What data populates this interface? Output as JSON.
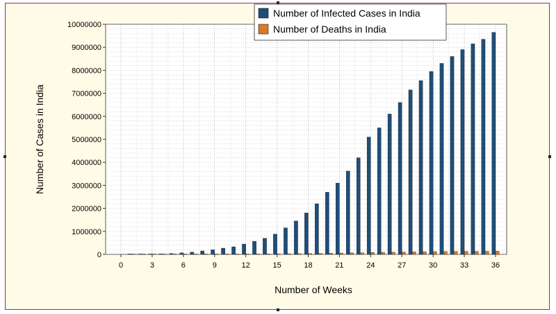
{
  "chart_data": {
    "type": "bar",
    "xlabel": "Number of Weeks",
    "ylabel": "Number of Cases in India",
    "xlim": [
      0,
      36
    ],
    "ylim": [
      0,
      10000000
    ],
    "xticks": [
      0,
      3,
      6,
      9,
      12,
      15,
      18,
      21,
      24,
      27,
      30,
      33,
      36
    ],
    "yticks": [
      0,
      1000000,
      2000000,
      3000000,
      4000000,
      5000000,
      6000000,
      7000000,
      8000000,
      9000000,
      10000000
    ],
    "grid": true,
    "legend_position": "top-right",
    "x": [
      1,
      2,
      3,
      4,
      5,
      6,
      7,
      8,
      9,
      10,
      11,
      12,
      13,
      14,
      15,
      16,
      17,
      18,
      19,
      20,
      21,
      22,
      23,
      24,
      25,
      26,
      27,
      28,
      29,
      30,
      31,
      32,
      33,
      34,
      35,
      36
    ],
    "series": [
      {
        "name": "Number of Infected Cases in India",
        "color": "#1f4e79",
        "values": [
          500,
          1000,
          5000,
          20000,
          40000,
          70000,
          100000,
          150000,
          200000,
          270000,
          330000,
          450000,
          570000,
          700000,
          880000,
          1150000,
          1450000,
          1800000,
          2200000,
          2700000,
          3100000,
          3620000,
          4200000,
          5100000,
          5500000,
          6100000,
          6600000,
          7150000,
          7550000,
          7950000,
          8300000,
          8600000,
          8900000,
          9150000,
          9350000,
          9650000
        ]
      },
      {
        "name": "Number of Deaths in India",
        "color": "#d77a2a",
        "values": [
          10,
          30,
          150,
          600,
          1200,
          2100,
          3000,
          4400,
          5700,
          7500,
          9400,
          12600,
          16100,
          19700,
          23700,
          28000,
          33000,
          38000,
          44000,
          52000,
          60000,
          67000,
          73000,
          85000,
          91000,
          95000,
          103000,
          112000,
          118000,
          122000,
          126000,
          129000,
          132000,
          134000,
          137000,
          140000
        ]
      }
    ]
  }
}
